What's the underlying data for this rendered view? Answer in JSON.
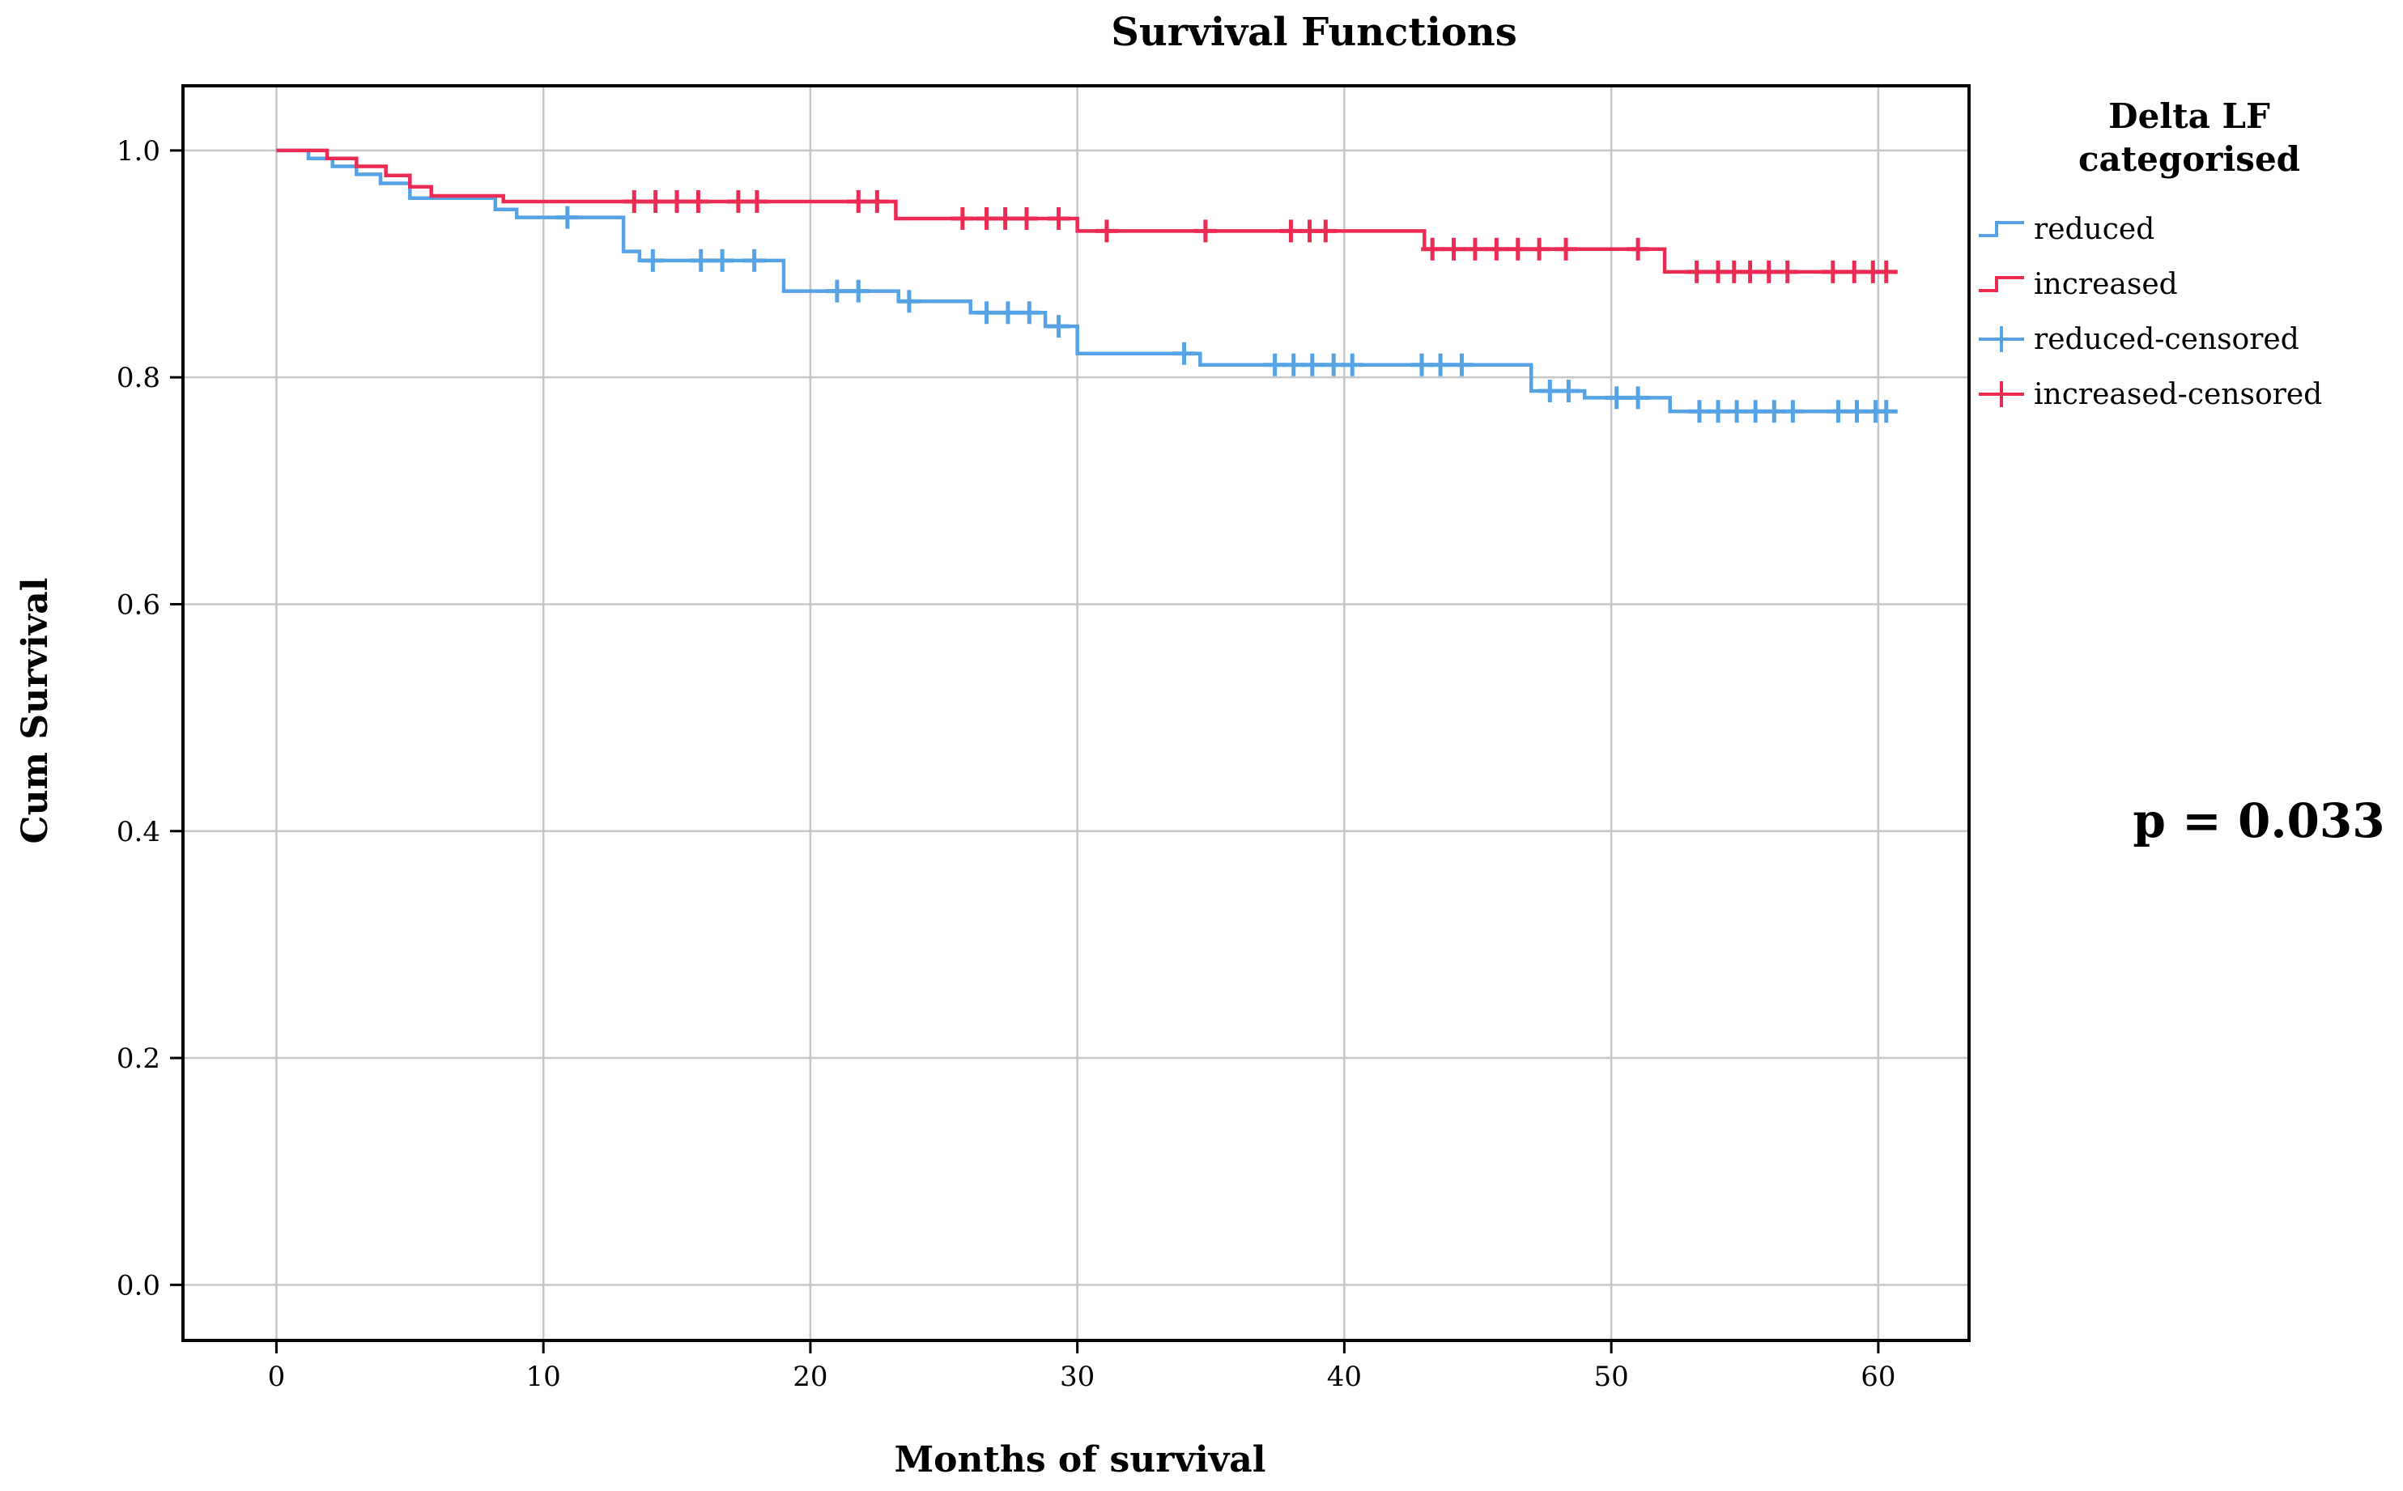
{
  "chart_data": {
    "type": "line",
    "subtype": "kaplan-meier-step-survival",
    "title": "Survival Functions",
    "xlabel": "Months of survival",
    "ylabel": "Cum Survival",
    "annotation": "p = 0.033",
    "grid": true,
    "legend_position": "right",
    "legend_title_lines": [
      "Delta LF",
      "categorised"
    ],
    "xlim": [
      -3.5,
      63.4
    ],
    "ylim": [
      -0.049,
      1.057
    ],
    "xticks": [
      0,
      10,
      20,
      30,
      40,
      50,
      60
    ],
    "xtick_labels": [
      "0",
      "10",
      "20",
      "30",
      "40",
      "50",
      "60"
    ],
    "yticks": [
      0.0,
      0.2,
      0.4,
      0.6,
      0.8,
      1.0
    ],
    "ytick_labels": [
      "0.0",
      "0.2",
      "0.4",
      "0.6",
      "0.8",
      "1.0"
    ],
    "colors": {
      "reduced": "#55A3E4",
      "increased": "#EC2B55",
      "grid": "#C6C6C6",
      "axis": "#000000",
      "background": "#FFFFFF"
    },
    "series": [
      {
        "name": "reduced",
        "color": "#55A3E4",
        "steps": [
          [
            0,
            1.0
          ],
          [
            1.2,
            0.993
          ],
          [
            2.1,
            0.986
          ],
          [
            3.0,
            0.979
          ],
          [
            3.9,
            0.971
          ],
          [
            5.0,
            0.958
          ],
          [
            8.2,
            0.948
          ],
          [
            9.0,
            0.941
          ],
          [
            13.0,
            0.911
          ],
          [
            13.6,
            0.903
          ],
          [
            19.0,
            0.876
          ],
          [
            23.3,
            0.867
          ],
          [
            26.0,
            0.857
          ],
          [
            28.8,
            0.845
          ],
          [
            30.0,
            0.821
          ],
          [
            34.6,
            0.811
          ],
          [
            47.0,
            0.788
          ],
          [
            49.0,
            0.782
          ],
          [
            52.2,
            0.77
          ],
          [
            60.6,
            0.77
          ]
        ],
        "censored": [
          [
            10.9,
            0.941
          ],
          [
            14.1,
            0.903
          ],
          [
            15.9,
            0.903
          ],
          [
            16.7,
            0.903
          ],
          [
            17.9,
            0.903
          ],
          [
            21.0,
            0.876
          ],
          [
            21.8,
            0.876
          ],
          [
            23.7,
            0.867
          ],
          [
            26.6,
            0.857
          ],
          [
            27.4,
            0.857
          ],
          [
            28.2,
            0.857
          ],
          [
            29.3,
            0.845
          ],
          [
            34.0,
            0.821
          ],
          [
            37.4,
            0.811
          ],
          [
            38.1,
            0.811
          ],
          [
            38.8,
            0.811
          ],
          [
            39.6,
            0.811
          ],
          [
            40.3,
            0.811
          ],
          [
            42.9,
            0.811
          ],
          [
            43.6,
            0.811
          ],
          [
            44.4,
            0.811
          ],
          [
            47.7,
            0.788
          ],
          [
            48.4,
            0.788
          ],
          [
            50.2,
            0.782
          ],
          [
            51.0,
            0.782
          ],
          [
            53.3,
            0.77
          ],
          [
            54.0,
            0.77
          ],
          [
            54.7,
            0.77
          ],
          [
            55.4,
            0.77
          ],
          [
            56.1,
            0.77
          ],
          [
            56.8,
            0.77
          ],
          [
            58.5,
            0.77
          ],
          [
            59.2,
            0.77
          ],
          [
            59.9,
            0.77
          ],
          [
            60.3,
            0.77
          ]
        ]
      },
      {
        "name": "increased",
        "color": "#EC2B55",
        "steps": [
          [
            0,
            1.0
          ],
          [
            1.9,
            0.993
          ],
          [
            3.0,
            0.986
          ],
          [
            4.1,
            0.978
          ],
          [
            5.0,
            0.968
          ],
          [
            5.8,
            0.96
          ],
          [
            8.5,
            0.955
          ],
          [
            23.2,
            0.94
          ],
          [
            30.0,
            0.929
          ],
          [
            43.0,
            0.913
          ],
          [
            52.0,
            0.893
          ],
          [
            60.6,
            0.893
          ]
        ],
        "censored": [
          [
            13.4,
            0.955
          ],
          [
            14.2,
            0.955
          ],
          [
            15.0,
            0.955
          ],
          [
            15.8,
            0.955
          ],
          [
            17.3,
            0.955
          ],
          [
            18.0,
            0.955
          ],
          [
            21.8,
            0.955
          ],
          [
            22.5,
            0.955
          ],
          [
            25.7,
            0.94
          ],
          [
            26.6,
            0.94
          ],
          [
            27.3,
            0.94
          ],
          [
            28.1,
            0.94
          ],
          [
            29.3,
            0.94
          ],
          [
            31.1,
            0.929
          ],
          [
            34.8,
            0.929
          ],
          [
            38.0,
            0.929
          ],
          [
            38.7,
            0.929
          ],
          [
            39.3,
            0.929
          ],
          [
            43.3,
            0.913
          ],
          [
            44.1,
            0.913
          ],
          [
            44.9,
            0.913
          ],
          [
            45.7,
            0.913
          ],
          [
            46.5,
            0.913
          ],
          [
            47.3,
            0.913
          ],
          [
            48.3,
            0.913
          ],
          [
            51.0,
            0.913
          ],
          [
            53.2,
            0.893
          ],
          [
            54.0,
            0.893
          ],
          [
            54.6,
            0.893
          ],
          [
            55.2,
            0.893
          ],
          [
            55.9,
            0.893
          ],
          [
            56.6,
            0.893
          ],
          [
            58.3,
            0.893
          ],
          [
            59.1,
            0.893
          ],
          [
            59.8,
            0.893
          ],
          [
            60.3,
            0.893
          ]
        ]
      }
    ],
    "legend_entries": [
      {
        "label": "reduced",
        "color": "#55A3E4",
        "marker": "step"
      },
      {
        "label": "increased",
        "color": "#EC2B55",
        "marker": "step"
      },
      {
        "label": "reduced-censored",
        "color": "#55A3E4",
        "marker": "plus"
      },
      {
        "label": "increased-censored",
        "color": "#EC2B55",
        "marker": "plus"
      }
    ]
  }
}
